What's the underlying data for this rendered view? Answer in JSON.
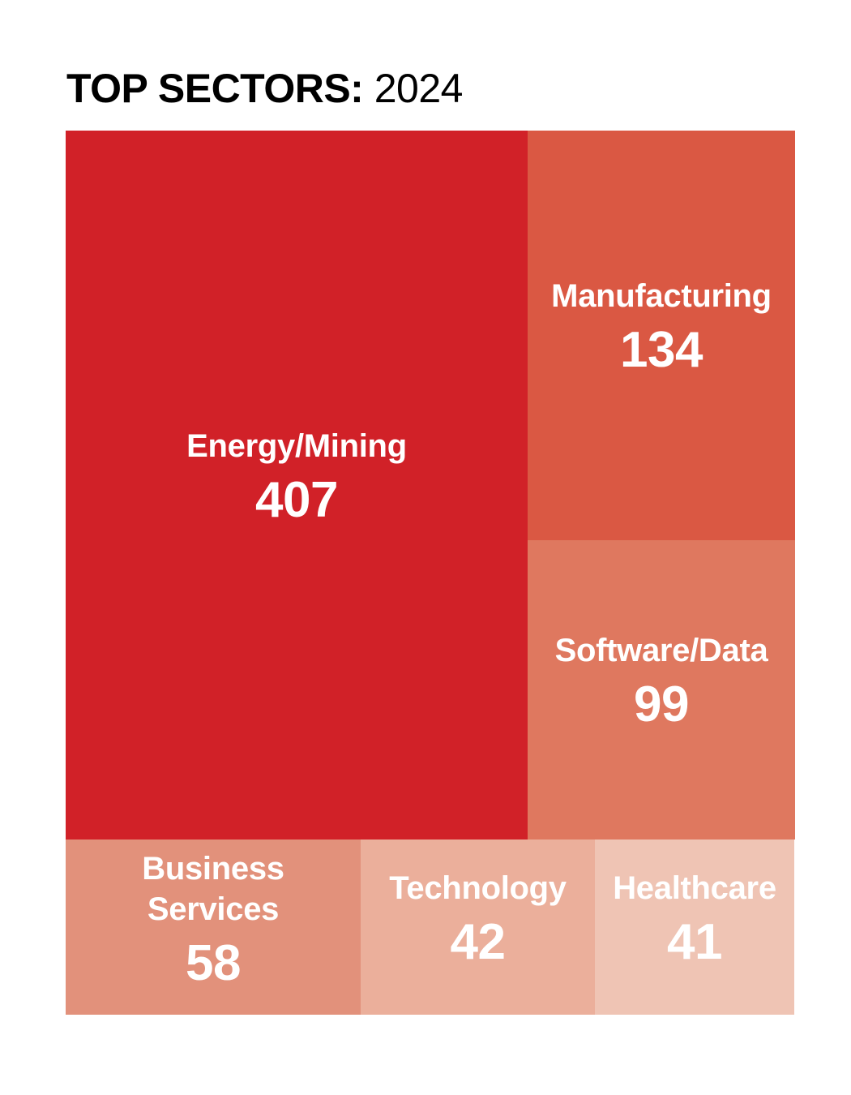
{
  "title": {
    "strong": "TOP SECTORS:",
    "light": "2024"
  },
  "chart_data": {
    "type": "treemap",
    "title": "TOP SECTORS: 2024",
    "items": [
      {
        "label": "Energy/Mining",
        "value": 407,
        "color": "#d12128"
      },
      {
        "label": "Manufacturing",
        "value": 134,
        "color": "#da5843"
      },
      {
        "label": "Software/Data",
        "value": 99,
        "color": "#df785f"
      },
      {
        "label": "Business\nServices",
        "value": 58,
        "color": "#e2917b"
      },
      {
        "label": "Technology",
        "value": 42,
        "color": "#ebaf9b"
      },
      {
        "label": "Healthcare",
        "value": 41,
        "color": "#efc4b4"
      }
    ]
  }
}
